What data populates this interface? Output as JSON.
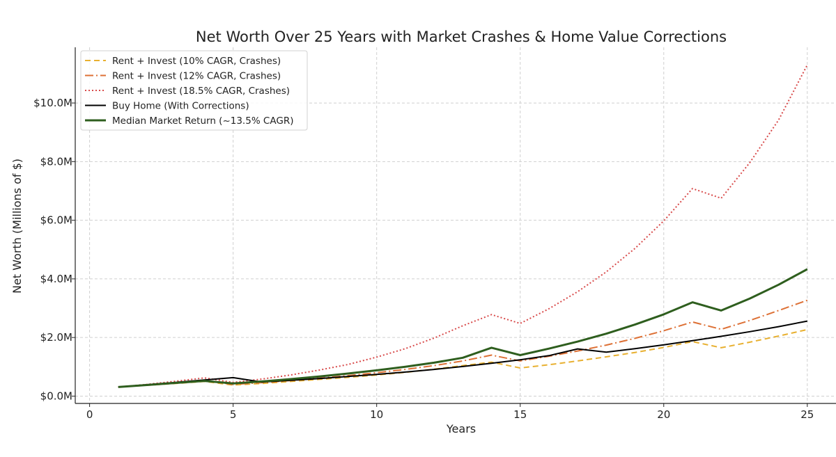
{
  "chart_data": {
    "type": "line",
    "title": "Net Worth Over 25 Years with Market Crashes & Home Value Corrections",
    "xlabel": "Years",
    "ylabel": "Net Worth (Millions of $)",
    "xlim": [
      -0.5,
      26.0
    ],
    "ylim": [
      -0.25,
      11.9
    ],
    "grid": true,
    "legend_position": "top-left",
    "x_ticks": [
      0,
      5,
      10,
      15,
      20,
      25
    ],
    "x_tick_labels": [
      "0",
      "5",
      "10",
      "15",
      "20",
      "25"
    ],
    "y_ticks": [
      0,
      2,
      4,
      6,
      8,
      10
    ],
    "y_tick_labels": [
      "$0.0M",
      "$2.0M",
      "$4.0M",
      "$6.0M",
      "$8.0M",
      "$10.0M"
    ],
    "x": [
      1,
      2,
      3,
      4,
      5,
      6,
      7,
      8,
      9,
      10,
      11,
      12,
      13,
      14,
      15,
      16,
      17,
      18,
      19,
      20,
      21,
      22,
      23,
      24,
      25
    ],
    "series": [
      {
        "name": "Rent + Invest (10% CAGR, Crashes)",
        "color": "#e8b030",
        "dash": "8 5",
        "width": 2,
        "values": [
          0.31,
          0.37,
          0.43,
          0.5,
          0.38,
          0.43,
          0.5,
          0.57,
          0.64,
          0.72,
          0.81,
          0.92,
          1.04,
          1.16,
          0.96,
          1.07,
          1.2,
          1.34,
          1.49,
          1.66,
          1.86,
          1.65,
          1.84,
          2.05,
          2.27
        ]
      },
      {
        "name": "Rent + Invest (12% CAGR, Crashes)",
        "color": "#dd7035",
        "dash": "12 4 2 4",
        "width": 2,
        "values": [
          0.31,
          0.38,
          0.45,
          0.53,
          0.4,
          0.46,
          0.53,
          0.61,
          0.7,
          0.8,
          0.91,
          1.04,
          1.2,
          1.4,
          1.2,
          1.36,
          1.54,
          1.74,
          1.97,
          2.23,
          2.53,
          2.28,
          2.58,
          2.92,
          3.27
        ]
      },
      {
        "name": "Rent + Invest (18.5% CAGR, Crashes)",
        "color": "#d84a4a",
        "dash": "2 3",
        "width": 2,
        "values": [
          0.31,
          0.4,
          0.51,
          0.62,
          0.47,
          0.58,
          0.72,
          0.89,
          1.08,
          1.33,
          1.62,
          1.98,
          2.4,
          2.78,
          2.48,
          2.98,
          3.56,
          4.24,
          5.04,
          5.98,
          7.08,
          6.75,
          7.97,
          9.42,
          11.3
        ]
      },
      {
        "name": "Buy Home (With Corrections)",
        "color": "#000000",
        "dash": "",
        "width": 2,
        "values": [
          0.31,
          0.39,
          0.47,
          0.55,
          0.63,
          0.48,
          0.54,
          0.6,
          0.67,
          0.74,
          0.82,
          0.91,
          1.01,
          1.12,
          1.24,
          1.38,
          1.61,
          1.5,
          1.62,
          1.75,
          1.89,
          2.04,
          2.2,
          2.37,
          2.56
        ]
      },
      {
        "name": "Median Market Return (~13.5% CAGR)",
        "color": "#2e5e1e",
        "dash": "",
        "width": 3,
        "values": [
          0.31,
          0.38,
          0.45,
          0.52,
          0.43,
          0.5,
          0.58,
          0.67,
          0.77,
          0.88,
          1.0,
          1.14,
          1.31,
          1.65,
          1.4,
          1.62,
          1.86,
          2.13,
          2.44,
          2.79,
          3.2,
          2.92,
          3.33,
          3.8,
          4.33
        ]
      }
    ]
  }
}
